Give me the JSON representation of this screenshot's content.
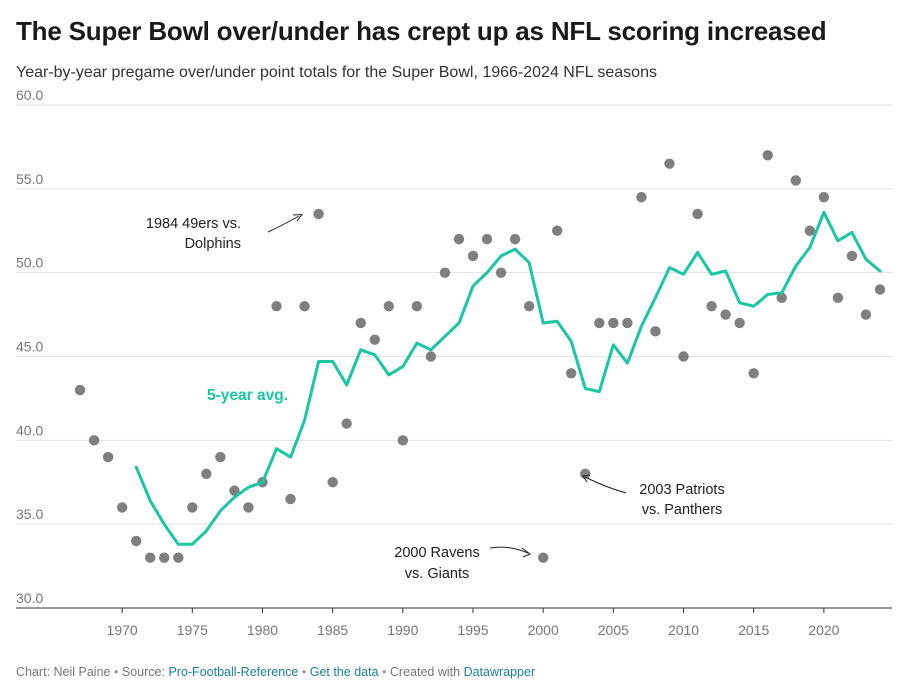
{
  "header": {
    "title": "The Super Bowl over/under has crept up as NFL scoring increased",
    "subtitle": "Year-by-year pregame over/under point totals for the Super Bowl, 1966-2024 NFL seasons"
  },
  "footer": {
    "chart_credit": "Chart: Neil Paine",
    "source_label": "Source:",
    "source_link": "Pro-Football-Reference",
    "data_link": "Get the data",
    "created_label": "Created with",
    "tool_link": "Datawrapper",
    "separator": "•"
  },
  "colors": {
    "avg_line": "#19c7a3",
    "dots": "#7f7f7f",
    "grid": "#e1e1e1",
    "axis_text": "#777777",
    "annotation_text": "#222222"
  },
  "chart_data": {
    "type": "scatter",
    "xlim": [
      1966,
      2024
    ],
    "ylim": [
      30,
      60
    ],
    "grid": true,
    "x_ticks": [
      1970,
      1975,
      1980,
      1985,
      1990,
      1995,
      2000,
      2005,
      2010,
      2015,
      2020
    ],
    "y_ticks": [
      "30.0",
      "35.0",
      "40.0",
      "45.0",
      "50.0",
      "55.0",
      "60.0"
    ],
    "series": [
      {
        "type": "scatter",
        "points": [
          [
            1967,
            43
          ],
          [
            1968,
            40
          ],
          [
            1969,
            39
          ],
          [
            1970,
            36
          ],
          [
            1971,
            34
          ],
          [
            1972,
            33
          ],
          [
            1973,
            33
          ],
          [
            1974,
            33
          ],
          [
            1975,
            36
          ],
          [
            1976,
            38
          ],
          [
            1977,
            39
          ],
          [
            1978,
            37
          ],
          [
            1979,
            36
          ],
          [
            1980,
            37.5
          ],
          [
            1981,
            48
          ],
          [
            1982,
            36.5
          ],
          [
            1983,
            48
          ],
          [
            1984,
            53.5
          ],
          [
            1985,
            37.5
          ],
          [
            1986,
            41
          ],
          [
            1987,
            47
          ],
          [
            1988,
            46
          ],
          [
            1989,
            48
          ],
          [
            1990,
            40
          ],
          [
            1991,
            48
          ],
          [
            1992,
            45
          ],
          [
            1993,
            50
          ],
          [
            1994,
            52
          ],
          [
            1995,
            51
          ],
          [
            1996,
            52
          ],
          [
            1997,
            50
          ],
          [
            1998,
            52
          ],
          [
            1999,
            48
          ],
          [
            2000,
            33
          ],
          [
            2001,
            52.5
          ],
          [
            2002,
            44
          ],
          [
            2003,
            38
          ],
          [
            2004,
            47
          ],
          [
            2005,
            47
          ],
          [
            2006,
            47
          ],
          [
            2007,
            54.5
          ],
          [
            2008,
            46.5
          ],
          [
            2009,
            56.5
          ],
          [
            2010,
            45
          ],
          [
            2011,
            53.5
          ],
          [
            2012,
            48
          ],
          [
            2013,
            47.5
          ],
          [
            2014,
            47
          ],
          [
            2015,
            44
          ],
          [
            2016,
            57
          ],
          [
            2017,
            48.5
          ],
          [
            2018,
            55.5
          ],
          [
            2019,
            52.5
          ],
          [
            2020,
            54.5
          ],
          [
            2021,
            48.5
          ],
          [
            2022,
            51
          ],
          [
            2023,
            47.5
          ],
          [
            2024,
            49
          ]
        ]
      },
      {
        "name": "5-year avg.",
        "type": "line",
        "points": [
          [
            1971,
            38.4
          ],
          [
            1972,
            36.4
          ],
          [
            1973,
            35
          ],
          [
            1974,
            33.8
          ],
          [
            1975,
            33.8
          ],
          [
            1976,
            34.6
          ],
          [
            1977,
            35.8
          ],
          [
            1978,
            36.6
          ],
          [
            1979,
            37.2
          ],
          [
            1980,
            37.5
          ],
          [
            1981,
            39.5
          ],
          [
            1982,
            39
          ],
          [
            1983,
            41.2
          ],
          [
            1984,
            44.7
          ],
          [
            1985,
            44.7
          ],
          [
            1986,
            43.3
          ],
          [
            1987,
            45.4
          ],
          [
            1988,
            45.1
          ],
          [
            1989,
            43.9
          ],
          [
            1990,
            44.4
          ],
          [
            1991,
            45.8
          ],
          [
            1992,
            45.4
          ],
          [
            1993,
            46.2
          ],
          [
            1994,
            47
          ],
          [
            1995,
            49.2
          ],
          [
            1996,
            50
          ],
          [
            1997,
            51
          ],
          [
            1998,
            51.4
          ],
          [
            1999,
            50.6
          ],
          [
            2000,
            47
          ],
          [
            2001,
            47.1
          ],
          [
            2002,
            45.9
          ],
          [
            2003,
            43.1
          ],
          [
            2004,
            42.9
          ],
          [
            2005,
            45.7
          ],
          [
            2006,
            44.6
          ],
          [
            2007,
            46.8
          ],
          [
            2008,
            48.5
          ],
          [
            2009,
            50.3
          ],
          [
            2010,
            49.9
          ],
          [
            2011,
            51.2
          ],
          [
            2012,
            49.9
          ],
          [
            2013,
            50.1
          ],
          [
            2014,
            48.2
          ],
          [
            2015,
            48
          ],
          [
            2016,
            48.7
          ],
          [
            2017,
            48.8
          ],
          [
            2018,
            50.4
          ],
          [
            2019,
            51.5
          ],
          [
            2020,
            53.6
          ],
          [
            2021,
            51.9
          ],
          [
            2022,
            52.4
          ],
          [
            2023,
            50.8
          ],
          [
            2024,
            50.1
          ]
        ]
      }
    ],
    "annotations": [
      {
        "lines": [
          "1984 49ers vs.",
          "Dolphins"
        ],
        "point": [
          1984,
          53.5
        ]
      },
      {
        "lines": [
          "2003 Patriots",
          "vs. Panthers"
        ],
        "point": [
          2003,
          38
        ]
      },
      {
        "lines": [
          "2000 Ravens",
          "vs. Giants"
        ],
        "point": [
          2000,
          33
        ]
      }
    ]
  }
}
